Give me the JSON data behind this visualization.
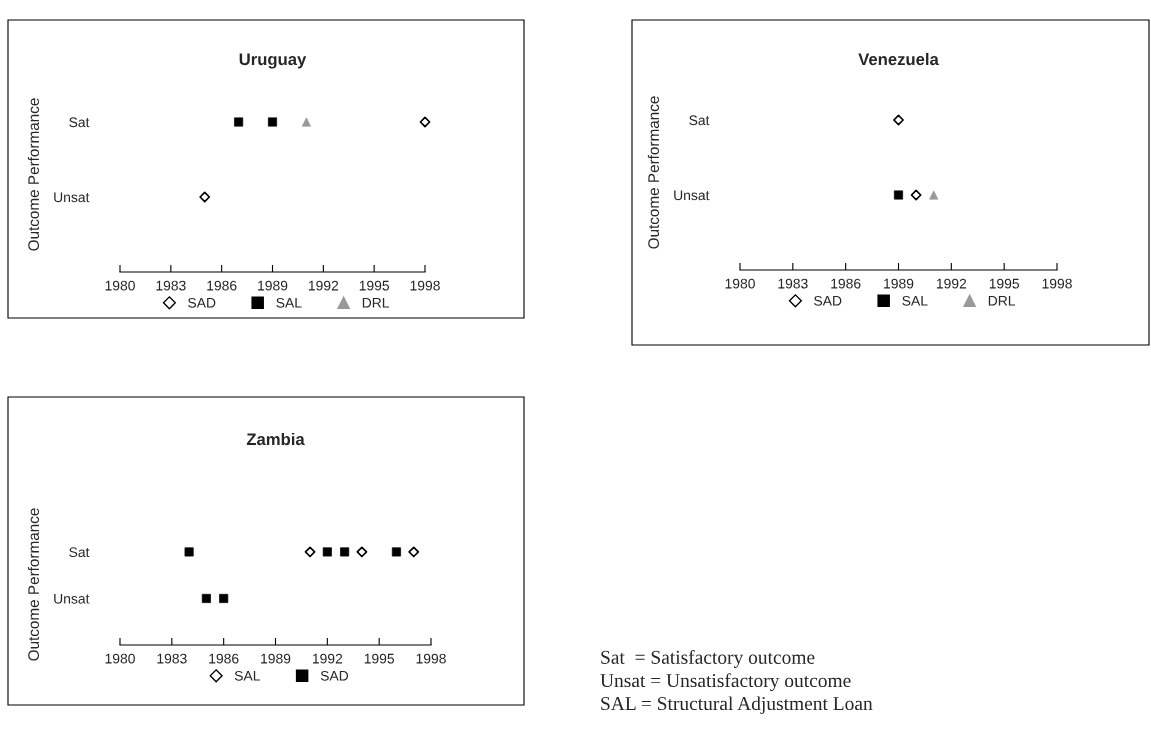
{
  "chart_data": [
    {
      "type": "scatter",
      "orientation": "horizontal",
      "title": "Uruguay",
      "ylabel": "Outcome Performance",
      "xlim": [
        1980,
        1998
      ],
      "xticks": [
        1980,
        1983,
        1986,
        1989,
        1992,
        1995,
        1998
      ],
      "categories": [
        "Sat",
        "Unsat",
        null
      ],
      "legend": "bottom",
      "series": [
        {
          "name": "SAD",
          "marker": "diamond",
          "color": "#000000",
          "values": [
            1998,
            1985,
            null
          ]
        },
        {
          "name": "SAL",
          "marker": "square",
          "color": "#000000",
          "values": [
            1987,
            null,
            null
          ]
        },
        {
          "marker": "square",
          "color": "#000000",
          "values": [
            1989,
            null,
            null
          ]
        },
        {
          "name": "DRL",
          "marker": "triangle",
          "color": "#999999",
          "values": [
            1991,
            null,
            null
          ]
        }
      ]
    },
    {
      "type": "scatter",
      "orientation": "horizontal",
      "title": "Venezuela",
      "ylabel": "Outcome Performance",
      "xlim": [
        1980,
        1998
      ],
      "xticks": [
        1980,
        1983,
        1986,
        1989,
        1992,
        1995,
        1998
      ],
      "categories": [
        "Sat",
        "Unsat",
        null
      ],
      "legend": "bottom",
      "series": [
        {
          "name": "SAD",
          "marker": "diamond",
          "color": "#000000",
          "values": [
            1989,
            1990,
            null
          ]
        },
        {
          "name": "SAL",
          "marker": "square",
          "color": "#000000",
          "values": [
            null,
            1989,
            null
          ]
        },
        {
          "name": "DRL",
          "marker": "triangle",
          "color": "#999999",
          "values": [
            null,
            1991,
            null
          ]
        }
      ]
    },
    {
      "type": "scatter",
      "orientation": "horizontal",
      "title": "Zambia",
      "ylabel": "Outcome Performance",
      "xlim": [
        1980,
        1998
      ],
      "xticks": [
        1980,
        1983,
        1986,
        1989,
        1992,
        1995,
        1998
      ],
      "categories": [
        "Sat",
        "Unsat",
        null
      ],
      "legend": "bottom",
      "series": [
        {
          "name": "SAL",
          "marker": "diamond",
          "color": "#000000",
          "values": [
            1991,
            null,
            null
          ]
        },
        {
          "marker": "diamond",
          "color": "#000000",
          "values": [
            1994,
            null,
            null
          ]
        },
        {
          "marker": "diamond",
          "color": "#000000",
          "values": [
            1997,
            null,
            null
          ]
        },
        {
          "name": "SAD",
          "marker": "square",
          "color": "#000000",
          "values": [
            1984,
            1985,
            null
          ]
        },
        {
          "marker": "square",
          "color": "#000000",
          "values": [
            1992,
            1986,
            null
          ]
        },
        {
          "marker": "square",
          "color": "#000000",
          "values": [
            1993,
            null,
            null
          ]
        },
        {
          "marker": "square",
          "color": "#000000",
          "values": [
            1996,
            null,
            null
          ]
        }
      ]
    },
    {
      "type": "other",
      "annotations": [
        "Sat  = Satisfactory outcome",
        "Unsat = Unsatisfactory outcome",
        "SAL = Structural Adjustment Loan"
      ]
    }
  ]
}
